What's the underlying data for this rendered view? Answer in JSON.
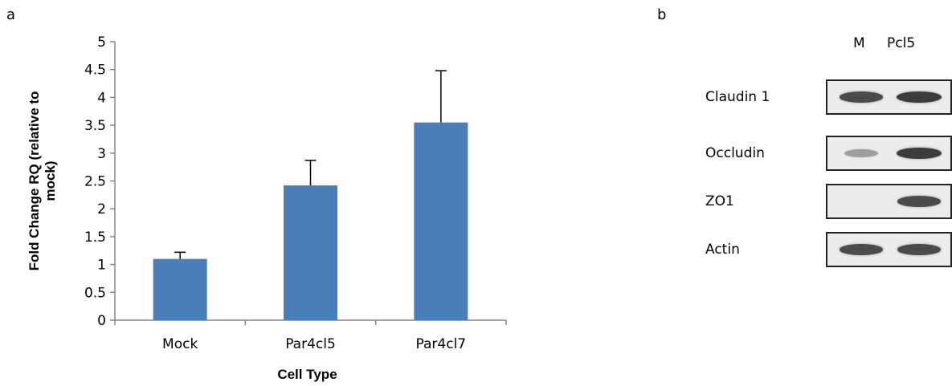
{
  "panel_a_label": "a",
  "panel_b_label": "b",
  "chart_data": {
    "type": "bar",
    "categories": [
      "Mock",
      "Par4cl5",
      "Par4cl7"
    ],
    "values": [
      1.1,
      2.42,
      3.55
    ],
    "error": [
      0.12,
      0.45,
      0.93
    ],
    "ylim": [
      0,
      5
    ],
    "yticks": [
      "0",
      "0.5",
      "1",
      "1.5",
      "2",
      "2.5",
      "3",
      "3.5",
      "4",
      "4.5",
      "5"
    ],
    "xlabel": "Cell Type",
    "ylabel": "Fold Change RQ (relative to mock)",
    "bar_color": "#4a7ebb",
    "grid": false
  },
  "blot": {
    "lanes": [
      "M",
      "Pcl5"
    ],
    "rows": [
      {
        "label": "Claudin 1",
        "intensity": [
          0.9,
          1.0
        ]
      },
      {
        "label": "Occludin",
        "intensity": [
          0.35,
          1.0
        ]
      },
      {
        "label": "ZO1",
        "intensity": [
          0.0,
          0.9
        ]
      },
      {
        "label": "Actin",
        "intensity": [
          0.9,
          0.9
        ]
      }
    ]
  }
}
